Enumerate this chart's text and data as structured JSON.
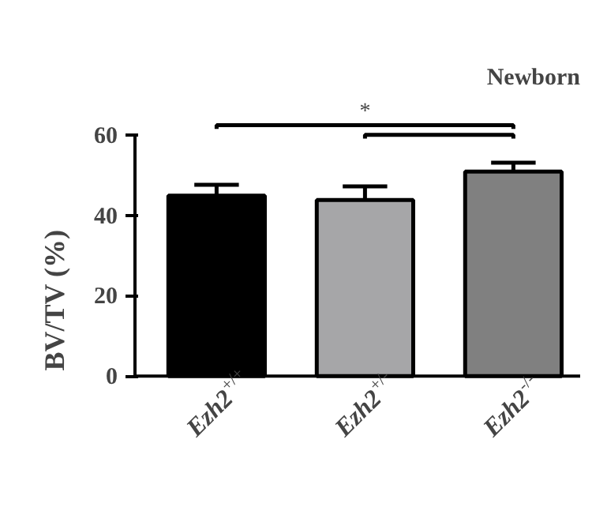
{
  "chart_data": {
    "type": "bar",
    "title": "Newborn",
    "ylabel": "BV/TV (%)",
    "categories": [
      "Ezh2$^{+/+}$",
      "Ezh2$^{+/-}$",
      "Ezh2$^{-/-}$"
    ],
    "values": [
      44.9,
      43.8,
      50.9
    ],
    "errors": [
      2.7,
      3.4,
      2.2
    ],
    "colors": [
      "#000000",
      "#a6a6a8",
      "#808080"
    ],
    "ylim": [
      0,
      60
    ],
    "yticks": [
      0,
      20,
      40,
      60
    ],
    "annotations": [
      "*"
    ],
    "grid": false
  }
}
